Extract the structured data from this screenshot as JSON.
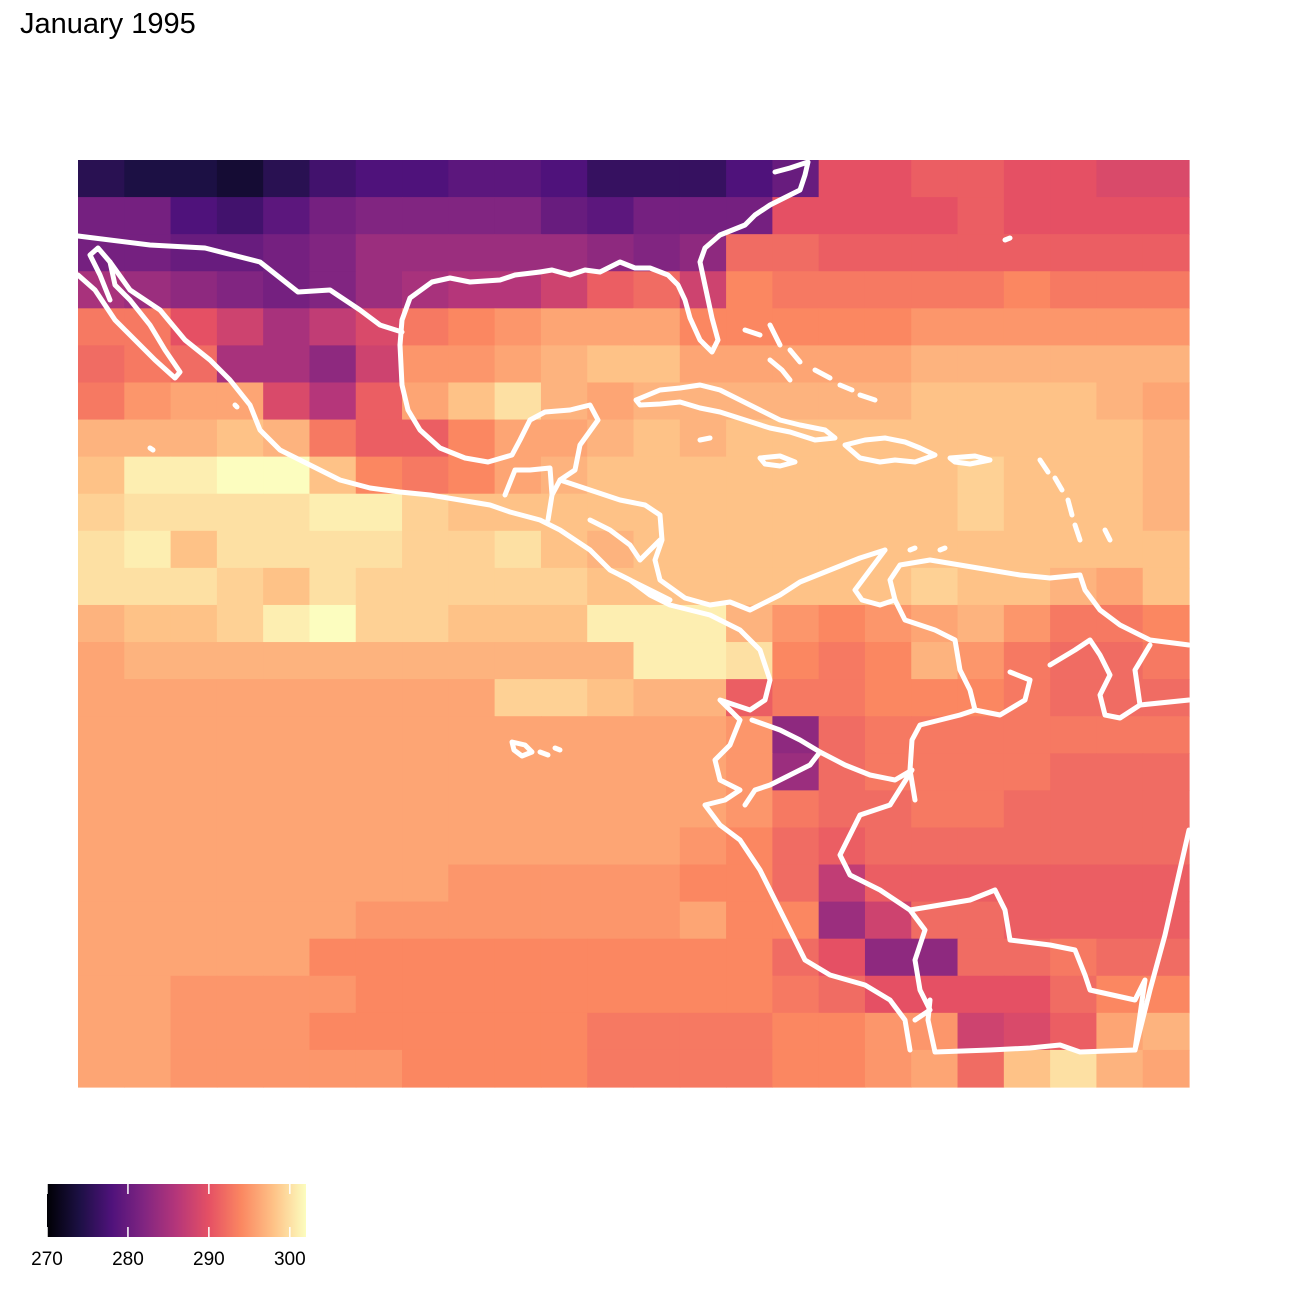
{
  "title": "January 1995",
  "legend": {
    "min": 270,
    "max": 302,
    "ticks": [
      270,
      280,
      290,
      300
    ],
    "colormap": "magma",
    "stops": [
      "#000004",
      "#1c1044",
      "#4f127b",
      "#812581",
      "#b5367a",
      "#e55064",
      "#fb8761",
      "#fec287",
      "#fcfdbf"
    ]
  },
  "map": {
    "region": "Central America, Caribbean and northwestern South America",
    "border_color": "#ffffff",
    "grid": [
      [
        275,
        274,
        274,
        273,
        275,
        277,
        278,
        278,
        279,
        279,
        278,
        276,
        276,
        276,
        278,
        280,
        290,
        290,
        291,
        291,
        290,
        290,
        289,
        289
      ],
      [
        281,
        281,
        278,
        277,
        279,
        281,
        282,
        282,
        282,
        282,
        280,
        279,
        281,
        281,
        281,
        290,
        290,
        290,
        290,
        291,
        290,
        290,
        290,
        290
      ],
      [
        281,
        281,
        280,
        280,
        281,
        282,
        284,
        284,
        284,
        284,
        284,
        283,
        282,
        283,
        292,
        292,
        291,
        291,
        291,
        291,
        291,
        291,
        291,
        291
      ],
      [
        285,
        284,
        283,
        282,
        281,
        282,
        284,
        285,
        286,
        286,
        288,
        291,
        292,
        288,
        294,
        293,
        293,
        293,
        293,
        293,
        294,
        293,
        293,
        293
      ],
      [
        293,
        293,
        290,
        288,
        285,
        287,
        289,
        293,
        294,
        295,
        296,
        296,
        296,
        294,
        294,
        294,
        294,
        294,
        295,
        295,
        295,
        295,
        295,
        295
      ],
      [
        292,
        293,
        292,
        285,
        285,
        283,
        288,
        295,
        295,
        296,
        297,
        298,
        298,
        296,
        296,
        296,
        296,
        296,
        297,
        297,
        297,
        297,
        297,
        297
      ],
      [
        293,
        295,
        296,
        296,
        289,
        286,
        291,
        296,
        298,
        300,
        297,
        296,
        297,
        297,
        297,
        297,
        297,
        297,
        298,
        298,
        298,
        298,
        297,
        296
      ],
      [
        297,
        297,
        297,
        298,
        297,
        293,
        291,
        291,
        294,
        296,
        296,
        297,
        298,
        297,
        298,
        298,
        298,
        298,
        298,
        298,
        298,
        298,
        298,
        297
      ],
      [
        298,
        301,
        301,
        302,
        302,
        298,
        294,
        293,
        294,
        296,
        297,
        298,
        298,
        298,
        298,
        298,
        298,
        298,
        298,
        299,
        298,
        298,
        298,
        297
      ],
      [
        299,
        300,
        300,
        300,
        300,
        301,
        301,
        299,
        298,
        298,
        298,
        298,
        298,
        298,
        298,
        298,
        298,
        298,
        298,
        299,
        298,
        298,
        298,
        297
      ],
      [
        300,
        301,
        298,
        300,
        300,
        300,
        300,
        299,
        299,
        300,
        298,
        297,
        298,
        298,
        298,
        298,
        298,
        298,
        298,
        298,
        298,
        298,
        298,
        298
      ],
      [
        300,
        300,
        300,
        299,
        298,
        300,
        299,
        299,
        299,
        299,
        299,
        298,
        298,
        298,
        298,
        298,
        298,
        298,
        299,
        298,
        298,
        297,
        296,
        298
      ],
      [
        297,
        298,
        298,
        299,
        301,
        302,
        299,
        299,
        298,
        298,
        298,
        301,
        301,
        301,
        297,
        295,
        294,
        295,
        296,
        297,
        295,
        293,
        293,
        294
      ],
      [
        296,
        297,
        297,
        297,
        297,
        297,
        297,
        297,
        297,
        297,
        297,
        297,
        301,
        301,
        300,
        294,
        293,
        294,
        297,
        295,
        293,
        292,
        292,
        293
      ],
      [
        296,
        296,
        296,
        296,
        296,
        296,
        296,
        296,
        296,
        299,
        299,
        298,
        297,
        297,
        291,
        293,
        293,
        294,
        294,
        294,
        293,
        292,
        292,
        292
      ],
      [
        296,
        296,
        296,
        296,
        296,
        296,
        296,
        296,
        296,
        296,
        296,
        296,
        296,
        296,
        295,
        283,
        292,
        293,
        293,
        293,
        293,
        293,
        293,
        293
      ],
      [
        296,
        296,
        296,
        296,
        296,
        296,
        296,
        296,
        296,
        296,
        296,
        296,
        296,
        296,
        295,
        284,
        292,
        293,
        293,
        293,
        293,
        292,
        292,
        292
      ],
      [
        296,
        296,
        296,
        296,
        296,
        296,
        296,
        296,
        296,
        296,
        296,
        296,
        296,
        296,
        295,
        293,
        292,
        292,
        293,
        293,
        292,
        292,
        292,
        292
      ],
      [
        296,
        296,
        296,
        296,
        296,
        296,
        296,
        296,
        296,
        296,
        296,
        296,
        296,
        295,
        294,
        292,
        291,
        292,
        292,
        292,
        292,
        292,
        292,
        292
      ],
      [
        296,
        296,
        296,
        296,
        296,
        296,
        296,
        296,
        295,
        295,
        295,
        295,
        295,
        294,
        294,
        292,
        287,
        291,
        291,
        291,
        291,
        291,
        291,
        291
      ],
      [
        296,
        296,
        296,
        296,
        296,
        296,
        295,
        295,
        295,
        295,
        295,
        295,
        295,
        296,
        294,
        294,
        284,
        288,
        292,
        292,
        291,
        291,
        291,
        291
      ],
      [
        296,
        296,
        296,
        296,
        296,
        294,
        294,
        294,
        294,
        294,
        294,
        294,
        294,
        294,
        294,
        292,
        290,
        283,
        283,
        292,
        292,
        293,
        292,
        292
      ],
      [
        296,
        296,
        295,
        295,
        295,
        295,
        294,
        294,
        294,
        294,
        294,
        294,
        294,
        294,
        294,
        293,
        292,
        290,
        290,
        290,
        290,
        292,
        294,
        294
      ],
      [
        296,
        296,
        295,
        295,
        295,
        294,
        294,
        294,
        294,
        294,
        294,
        293,
        293,
        293,
        293,
        294,
        294,
        295,
        295,
        288,
        289,
        291,
        296,
        297
      ],
      [
        296,
        296,
        295,
        295,
        295,
        295,
        295,
        294,
        294,
        294,
        294,
        293,
        293,
        293,
        293,
        294,
        294,
        295,
        296,
        292,
        298,
        300,
        297,
        296
      ]
    ]
  }
}
